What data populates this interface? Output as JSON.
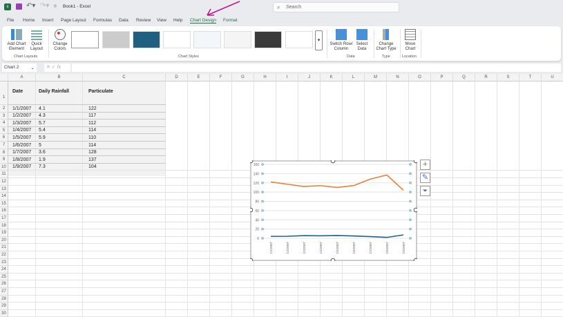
{
  "titlebar": {
    "title": "Book1 - Excel",
    "search_placeholder": "Search"
  },
  "tabs": [
    "File",
    "Home",
    "Insert",
    "Page Layout",
    "Formulas",
    "Data",
    "Review",
    "View",
    "Help",
    "Chart Design",
    "Format"
  ],
  "ribbon": {
    "add_chart_element": "Add Chart Element",
    "quick_layout": "Quick Layout",
    "change_colors": "Change Colors",
    "chart_layouts": "Chart Layouts",
    "chart_styles": "Chart Styles",
    "switch_row_column": "Switch Row/ Column",
    "select_data": "Select Data",
    "data_group": "Data",
    "change_chart_type": "Change Chart Type",
    "type_group": "Type",
    "move_chart": "Move Chart",
    "location_group": "Location"
  },
  "formula_bar": {
    "name_box": "Chart 2",
    "fx": "fx",
    "value": ""
  },
  "columns": [
    "A",
    "B",
    "C",
    "D",
    "E",
    "F",
    "G",
    "H",
    "I",
    "J",
    "K",
    "L",
    "M",
    "N",
    "O",
    "P",
    "Q",
    "R",
    "S",
    "T",
    "U"
  ],
  "table": {
    "headers": [
      "Date",
      "Daily Rainfall",
      "Particulate"
    ],
    "rows": [
      [
        "1/1/2007",
        "4.1",
        "122"
      ],
      [
        "1/2/2007",
        "4.3",
        "117"
      ],
      [
        "1/3/2007",
        "5.7",
        "112"
      ],
      [
        "1/4/2007",
        "5.4",
        "114"
      ],
      [
        "1/5/2007",
        "5.9",
        "110"
      ],
      [
        "1/6/2007",
        "5",
        "114"
      ],
      [
        "1/7/2007",
        "3.6",
        "128"
      ],
      [
        "1/8/2007",
        "1.9",
        "137"
      ],
      [
        "1/9/2007",
        "7.3",
        "104"
      ]
    ]
  },
  "chart_data": {
    "type": "line",
    "categories": [
      "1/1/2007",
      "1/2/2007",
      "1/3/2007",
      "1/4/2007",
      "1/5/2007",
      "1/6/2007",
      "1/7/2007",
      "1/8/2007",
      "1/9/2007"
    ],
    "series": [
      {
        "values": [
          4.1,
          4.3,
          5.7,
          5.4,
          5.9,
          5,
          3.6,
          1.9,
          7.3
        ],
        "color": "#1f5f80"
      },
      {
        "values": [
          122,
          117,
          112,
          114,
          110,
          114,
          128,
          137,
          104
        ],
        "color": "#ed7d31"
      }
    ],
    "yticks": [
      "0",
      "20",
      "40",
      "60",
      "80",
      "100",
      "120",
      "140",
      "160"
    ],
    "ylim": [
      0,
      160
    ],
    "grid": true,
    "legend": "none"
  },
  "colors": {
    "accent": "#1e7145",
    "arrow": "#c0168a"
  }
}
